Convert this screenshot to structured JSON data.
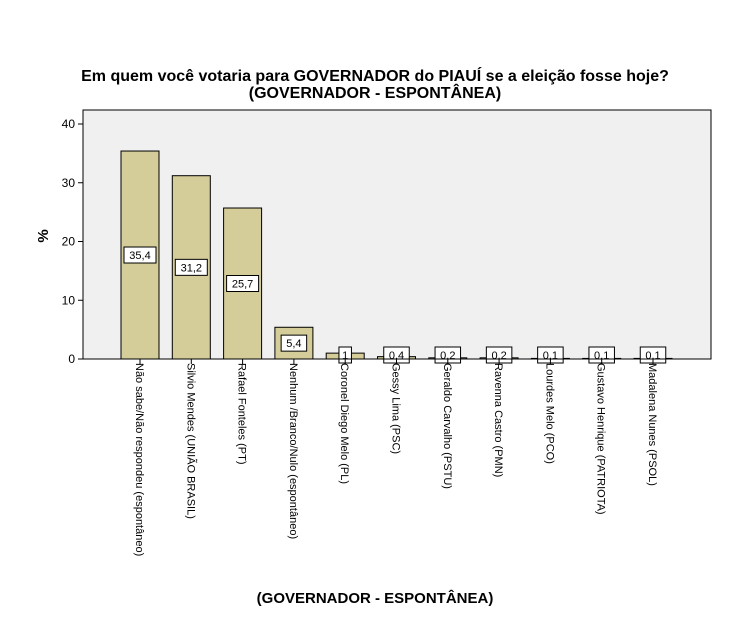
{
  "chart_data": {
    "type": "bar",
    "title": "Em quem você votaria para GOVERNADOR do PIAUÍ se a eleição fosse hoje?",
    "subtitle": "(GOVERNADOR - ESPONTÂNEA)",
    "xlabel": "(GOVERNADOR - ESPONTÂNEA)",
    "ylabel": "%",
    "ylim": [
      0,
      40
    ],
    "yticks": [
      0,
      10,
      20,
      30,
      40
    ],
    "grid": false,
    "categories": [
      "Não sabe/Não respondeu (espontâneo)",
      "Silvio Mendes (UNIÃO BRASIL)",
      "Rafael Fonteles (PT)",
      "Nenhum /Branco/Nulo (espontâneo)",
      "Coronel Diego Melo (PL)",
      "Gessy Lima (PSC)",
      "Geraldo Carvalho (PSTU)",
      "Ravenna Castro (PMN)",
      "Lourdes Melo (PCO)",
      "Gustavo Henrique (PATRIOTA)",
      "Madalena Nunes (PSOL)"
    ],
    "values": [
      35.4,
      31.2,
      25.7,
      5.4,
      1.0,
      0.4,
      0.2,
      0.2,
      0.1,
      0.1,
      0.1
    ],
    "value_labels": [
      "35,4",
      "31,2",
      "25,7",
      "5,4",
      "1",
      "0,4",
      "0,2",
      "0,2",
      "0,1",
      "0,1",
      "0,1"
    ],
    "colors": {
      "bar": "#d4cc99",
      "bar_stroke": "#000000",
      "plot_bg": "#f0f0f0"
    }
  }
}
